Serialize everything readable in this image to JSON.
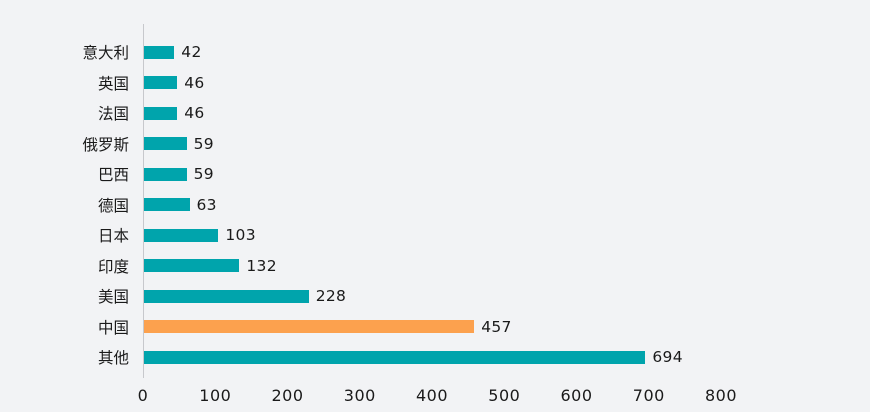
{
  "chart_data": {
    "type": "bar",
    "orientation": "horizontal",
    "title": "",
    "xlabel": "",
    "ylabel": "",
    "categories": [
      "意大利",
      "英国",
      "法国",
      "俄罗斯",
      "巴西",
      "德国",
      "日本",
      "印度",
      "美国",
      "中国",
      "其他"
    ],
    "values": [
      42,
      46,
      46,
      59,
      59,
      63,
      103,
      132,
      228,
      457,
      694
    ],
    "x_ticks": [
      0,
      100,
      200,
      300,
      400,
      500,
      600,
      700,
      800
    ],
    "xlim": [
      0,
      800
    ],
    "grid": false,
    "legend": false,
    "bar_color": "#00A4AC",
    "highlight_category": "中国",
    "highlight_color": "#FCA14E"
  },
  "colors": {
    "background": "#F2F3F5",
    "axis_line": "#C7C8CC",
    "text": "#1A1A1A"
  }
}
